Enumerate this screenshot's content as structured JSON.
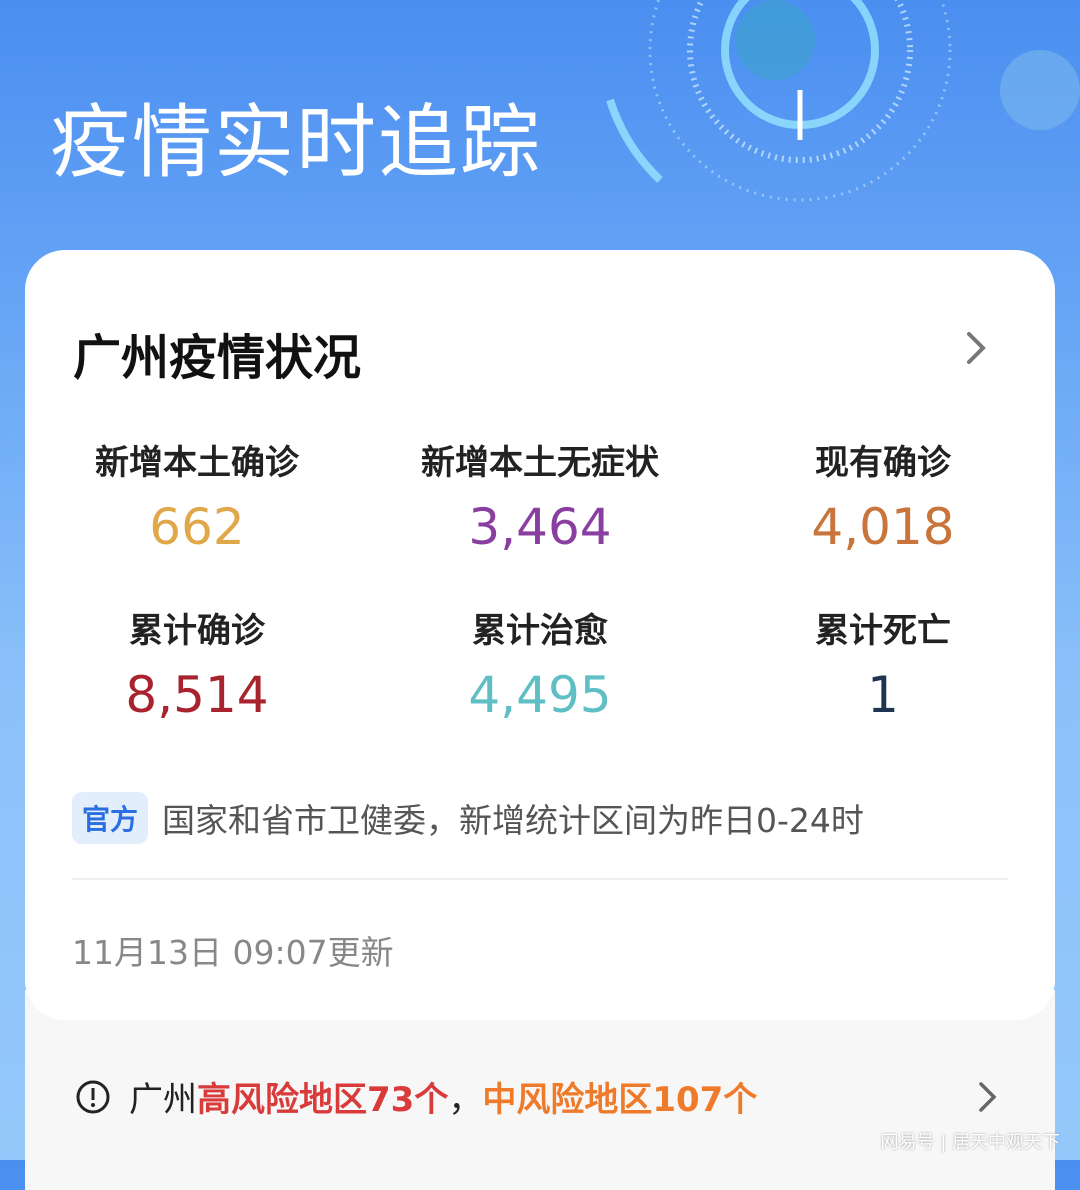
{
  "header": {
    "title": "疫情实时追踪"
  },
  "card": {
    "title": "广州疫情状况",
    "stats": [
      {
        "label": "新增本土确诊",
        "value": "662",
        "color": "#e0a84a"
      },
      {
        "label": "新增本土无症状",
        "value": "3,464",
        "color": "#8a3fa0"
      },
      {
        "label": "现有确诊",
        "value": "4,018",
        "color": "#c8743a"
      },
      {
        "label": "累计确诊",
        "value": "8,514",
        "color": "#a8232e"
      },
      {
        "label": "累计治愈",
        "value": "4,495",
        "color": "#5fbfc4"
      },
      {
        "label": "累计死亡",
        "value": "1",
        "color": "#1e3550"
      }
    ],
    "source_badge": "官方",
    "source_text": "国家和省市卫健委，新增统计区间为昨日0-24时",
    "update_time": "11月13日 09:07更新"
  },
  "risk": {
    "city": "广州",
    "high": "高风险地区73个",
    "sep": "，",
    "mid": "中风险地区107个"
  },
  "watermark": "网易号 | 居天中观天下"
}
